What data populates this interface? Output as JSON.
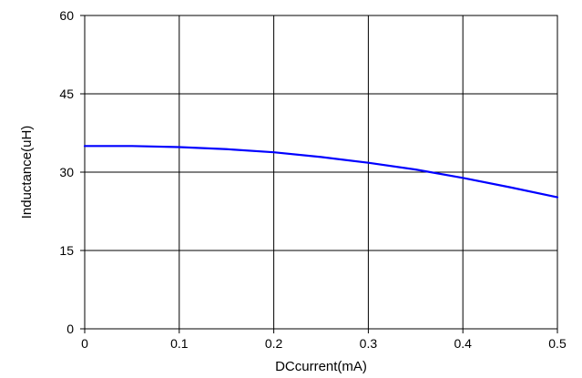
{
  "chart_data": {
    "type": "line",
    "title": "",
    "xlabel": "DCcurrent(mA)",
    "ylabel": "Inductance(uH)",
    "xlim": [
      0,
      0.5
    ],
    "ylim": [
      0,
      60
    ],
    "x_ticks": [
      0,
      0.1,
      0.2,
      0.3,
      0.4,
      0.5
    ],
    "x_tick_labels": [
      "0",
      "0.1",
      "0.2",
      "0.3",
      "0.4",
      "0.5"
    ],
    "y_ticks": [
      0,
      15,
      30,
      45,
      60
    ],
    "y_tick_labels": [
      "0",
      "15",
      "30",
      "45",
      "60"
    ],
    "grid": true,
    "legend": "none",
    "series": [
      {
        "color": "#0000ff",
        "x": [
          0,
          0.05,
          0.1,
          0.15,
          0.2,
          0.25,
          0.3,
          0.35,
          0.4,
          0.45,
          0.5
        ],
        "y": [
          35.0,
          35.0,
          34.8,
          34.4,
          33.8,
          32.9,
          31.8,
          30.5,
          28.9,
          27.1,
          25.2
        ]
      }
    ]
  }
}
